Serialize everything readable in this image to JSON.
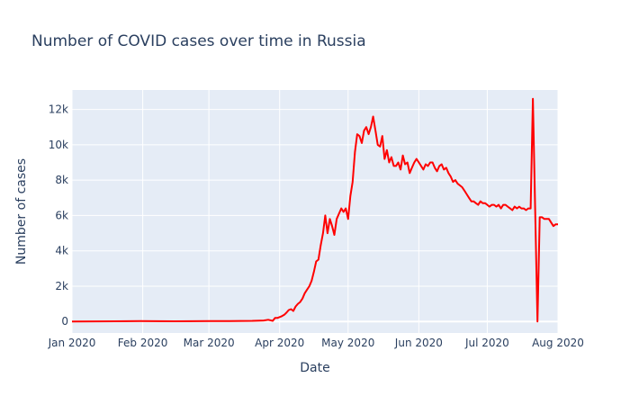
{
  "chart_data": {
    "type": "line",
    "title": "Number of COVID cases over time in Russia",
    "xlabel": "Date",
    "ylabel": "Number of cases",
    "x_range": [
      "2020-01-01",
      "2020-08-01"
    ],
    "ylim": [
      -650,
      13100
    ],
    "grid": true,
    "legend": "none",
    "x_ticks": [
      {
        "date": "2020-01-01",
        "label": "Jan 2020"
      },
      {
        "date": "2020-02-01",
        "label": "Feb 2020"
      },
      {
        "date": "2020-03-01",
        "label": "Mar 2020"
      },
      {
        "date": "2020-04-01",
        "label": "Apr 2020"
      },
      {
        "date": "2020-05-01",
        "label": "May 2020"
      },
      {
        "date": "2020-06-01",
        "label": "Jun 2020"
      },
      {
        "date": "2020-07-01",
        "label": "Jul 2020"
      },
      {
        "date": "2020-08-01",
        "label": "Aug 2020"
      }
    ],
    "y_ticks": [
      {
        "value": 0,
        "label": "0"
      },
      {
        "value": 2000,
        "label": "2k"
      },
      {
        "value": 4000,
        "label": "4k"
      },
      {
        "value": 6000,
        "label": "6k"
      },
      {
        "value": 8000,
        "label": "8k"
      },
      {
        "value": 10000,
        "label": "10k"
      },
      {
        "value": 12000,
        "label": "12k"
      }
    ],
    "colors": {
      "line": "#ff0000",
      "plot_bg": "#e5ecf6",
      "grid": "#ffffff",
      "text": "#2a3f5f"
    },
    "series": [
      {
        "x": [
          "2020-01-01",
          "2020-01-31",
          "2020-02-15",
          "2020-03-01",
          "2020-03-10",
          "2020-03-15",
          "2020-03-20",
          "2020-03-25",
          "2020-03-27",
          "2020-03-29",
          "2020-03-30",
          "2020-03-31",
          "2020-04-01",
          "2020-04-02",
          "2020-04-03",
          "2020-04-04",
          "2020-04-05",
          "2020-04-06",
          "2020-04-07",
          "2020-04-08",
          "2020-04-09",
          "2020-04-10",
          "2020-04-11",
          "2020-04-12",
          "2020-04-13",
          "2020-04-14",
          "2020-04-15",
          "2020-04-16",
          "2020-04-17",
          "2020-04-18",
          "2020-04-19",
          "2020-04-20",
          "2020-04-21",
          "2020-04-22",
          "2020-04-23",
          "2020-04-24",
          "2020-04-25",
          "2020-04-26",
          "2020-04-27",
          "2020-04-28",
          "2020-04-29",
          "2020-04-30",
          "2020-05-01",
          "2020-05-02",
          "2020-05-03",
          "2020-05-04",
          "2020-05-05",
          "2020-05-06",
          "2020-05-07",
          "2020-05-08",
          "2020-05-09",
          "2020-05-10",
          "2020-05-11",
          "2020-05-12",
          "2020-05-13",
          "2020-05-14",
          "2020-05-15",
          "2020-05-16",
          "2020-05-17",
          "2020-05-18",
          "2020-05-19",
          "2020-05-20",
          "2020-05-21",
          "2020-05-22",
          "2020-05-23",
          "2020-05-24",
          "2020-05-25",
          "2020-05-26",
          "2020-05-27",
          "2020-05-28",
          "2020-05-29",
          "2020-05-30",
          "2020-05-31",
          "2020-06-01",
          "2020-06-02",
          "2020-06-03",
          "2020-06-04",
          "2020-06-05",
          "2020-06-06",
          "2020-06-07",
          "2020-06-08",
          "2020-06-09",
          "2020-06-10",
          "2020-06-11",
          "2020-06-12",
          "2020-06-13",
          "2020-06-14",
          "2020-06-15",
          "2020-06-16",
          "2020-06-17",
          "2020-06-18",
          "2020-06-19",
          "2020-06-20",
          "2020-06-21",
          "2020-06-22",
          "2020-06-23",
          "2020-06-24",
          "2020-06-25",
          "2020-06-26",
          "2020-06-27",
          "2020-06-28",
          "2020-06-29",
          "2020-06-30",
          "2020-07-01",
          "2020-07-02",
          "2020-07-03",
          "2020-07-04",
          "2020-07-05",
          "2020-07-06",
          "2020-07-07",
          "2020-07-08",
          "2020-07-09",
          "2020-07-10",
          "2020-07-11",
          "2020-07-12",
          "2020-07-13",
          "2020-07-14",
          "2020-07-15",
          "2020-07-16",
          "2020-07-17",
          "2020-07-18",
          "2020-07-19",
          "2020-07-20",
          "2020-07-21",
          "2020-07-22",
          "2020-07-23",
          "2020-07-24",
          "2020-07-25",
          "2020-07-26",
          "2020-07-27",
          "2020-07-28",
          "2020-07-29",
          "2020-07-30",
          "2020-07-31",
          "2020-08-01"
        ],
        "y": [
          0,
          20,
          10,
          20,
          20,
          30,
          40,
          60,
          100,
          40,
          200,
          200,
          250,
          300,
          380,
          500,
          650,
          700,
          600,
          850,
          1000,
          1100,
          1300,
          1600,
          1800,
          2000,
          2300,
          2800,
          3400,
          3500,
          4300,
          5000,
          6000,
          5000,
          5800,
          5400,
          4900,
          5800,
          6100,
          6400,
          6200,
          6400,
          5800,
          7100,
          7900,
          9600,
          10600,
          10500,
          10100,
          10800,
          11000,
          10600,
          11000,
          11600,
          10800,
          10000,
          9900,
          10500,
          9200,
          9700,
          9000,
          9300,
          8800,
          8800,
          9000,
          8600,
          9400,
          8900,
          9000,
          8400,
          8700,
          9000,
          9200,
          9000,
          8800,
          8600,
          8900,
          8800,
          9000,
          9000,
          8700,
          8500,
          8800,
          8900,
          8600,
          8700,
          8400,
          8200,
          7900,
          8000,
          7800,
          7700,
          7600,
          7400,
          7200,
          7000,
          6800,
          6800,
          6700,
          6600,
          6800,
          6700,
          6700,
          6600,
          6500,
          6600,
          6600,
          6500,
          6600,
          6400,
          6600,
          6600,
          6500,
          6400,
          6300,
          6500,
          6400,
          6500,
          6400,
          6400,
          6300,
          6400,
          6400,
          12600,
          6400,
          0,
          5900,
          5900,
          5800,
          5800,
          5800,
          5600,
          5400,
          5500,
          5500
        ],
        "color": "#ff0000"
      }
    ]
  }
}
